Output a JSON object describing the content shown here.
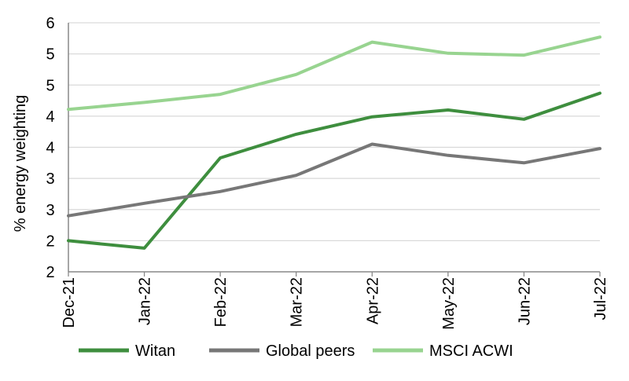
{
  "chart_data": {
    "type": "line",
    "categories": [
      "Dec-21",
      "Jan-22",
      "Feb-22",
      "Mar-22",
      "Apr-22",
      "May-22",
      "Jun-22",
      "Jul-22"
    ],
    "ylabel": "% energy weighting",
    "yticks": [
      "2",
      "2",
      "3",
      "3",
      "4",
      "4",
      "5",
      "5",
      "6"
    ],
    "ylim": [
      1.5,
      5.5
    ],
    "grid": true,
    "legend_position": "bottom",
    "series": [
      {
        "name": "Witan",
        "color": "#3e8e3e",
        "values": [
          2.0,
          1.88,
          3.33,
          3.71,
          3.99,
          4.1,
          3.95,
          4.37
        ]
      },
      {
        "name": "Global peers",
        "color": "#777777",
        "values": [
          2.4,
          2.6,
          2.79,
          3.05,
          3.55,
          3.37,
          3.25,
          3.48
        ]
      },
      {
        "name": "MSCI ACWI",
        "color": "#98d490",
        "values": [
          4.11,
          4.22,
          4.35,
          4.67,
          5.19,
          5.01,
          4.98,
          5.27
        ]
      }
    ]
  }
}
